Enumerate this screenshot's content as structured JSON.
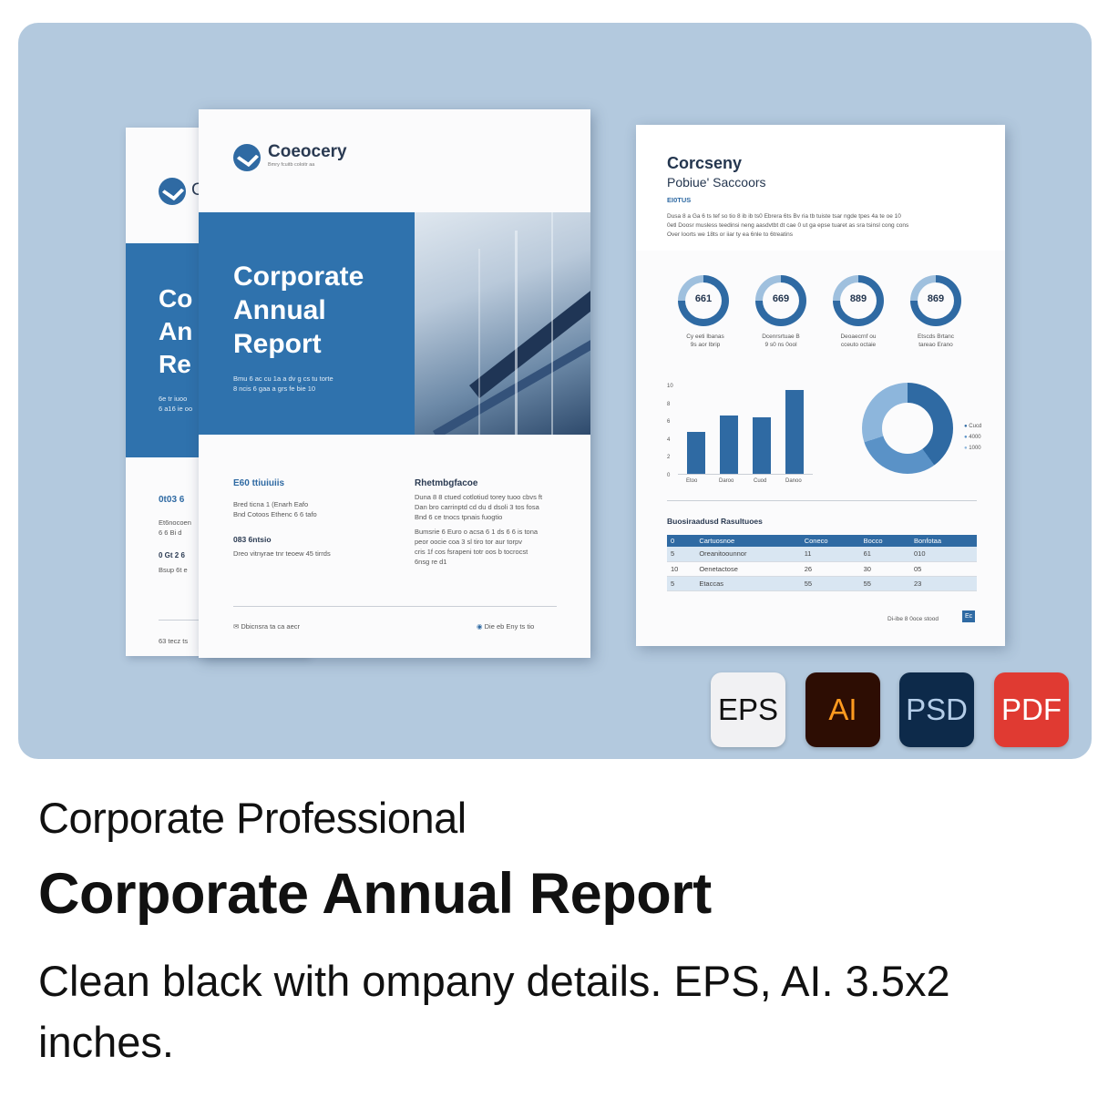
{
  "cover_front": {
    "brand": "Coeocery",
    "brand_tagline": "Bmry fcuitb coloitr aa",
    "title_line1": "Corporate",
    "title_line2": "Annual",
    "title_line3": "Report",
    "intro_line1": "Bmu 6 ac cu 1a a dv g cs tu torte",
    "intro_line2": "8 ncis 6 gaa a grs fe bie 10",
    "left_heading": "E60 ttiuiuiis",
    "left_line1": "Bred ticna 1 (Enarh Eafo",
    "left_line2": "Bnd Cotoos Ethenc 6 6 tafo",
    "left_heading2": "083 6ntsio",
    "left_line3": "Dreo vitnyrae tnr teoew 45 tirrds",
    "right_heading": "Rhetmbgfacoe",
    "right_line1": "Duna 8 8 ctued cotlotiud torey tuoo cbvs ft",
    "right_line2": "Dan bro carrinptd cd du d dsoli 3 tos fosa",
    "right_line3": "Bnd 6 ce tnocs tpnais fuogtio",
    "right_line4": "Bumsrie 6 Euro o acsa 6 1 ds 6 6 is tona",
    "right_line5": "peor oocie coa 3 sl tiro tor aur torpv",
    "right_line6": "cris 1f cos fsrapeni totr oos b tocrocst",
    "right_line7": "6nsg re d1",
    "footer_left": "Dbicnsra ta ca aecr",
    "footer_right": "Die eb Eny ts tio"
  },
  "cover_back": {
    "title_line1": "Co",
    "title_line2": "An",
    "title_line3": "Re",
    "intro_line1": "6e tr iuoo",
    "intro_line2": "6 a16 ie oo",
    "heading": "0t03 6",
    "line1": "Et6nocoen",
    "line2": "6 6 Bi d",
    "heading2": "0 Gt 2 6",
    "line3": "Bsup 6t e",
    "footer": "63 tecz ts"
  },
  "inner_page": {
    "title": "Corcseny",
    "subtitle": "Pobiue' Saccoors",
    "label": "EI0TUS",
    "para1": "Dusa 8 a Ga 6 ts tef so tio 8 ib ib ts0 Ebrera 6ts Bv ria tb tuiste tsar ngde tpes 4a te oe 10",
    "para2": "0etl Doosr musless teedinsi neng aasdvtbt dt cae 0 ut ga epse tuaret as sra tsinsl cong cons",
    "para3": "Over loorts we 18ts or iiar ty ea 6nle to 6treatins",
    "kpis": [
      {
        "value": "661",
        "line1": "Cy eeti Ibanas",
        "line2": "9s aor Ibrip"
      },
      {
        "value": "669",
        "line1": "Dcenrsrtuae B",
        "line2": "9 s0 ns 0ool"
      },
      {
        "value": "889",
        "line1": "Deoaecrnf ou",
        "line2": "cceuto octaie"
      },
      {
        "value": "869",
        "line1": "Etscds Brtanc",
        "line2": "tareao Erano"
      }
    ],
    "chart_ticks": [
      "10",
      "8",
      "6",
      "4",
      "2",
      "0"
    ],
    "chart_categories": [
      "Etoo",
      "Daroo",
      "Cuod",
      "Danoo"
    ],
    "legend": [
      "Cucd",
      "4000",
      "1000"
    ],
    "table_title": "Buosiraadusd Rasultuoes",
    "table_headers": [
      "0",
      "Cartuosnoe",
      "Coneco",
      "Bocco",
      "Bonfotaa"
    ],
    "table_rows": [
      [
        "5",
        "Oreanitoounnor",
        "11",
        "61",
        "010"
      ],
      [
        "10",
        "Oenetactose",
        "26",
        "30",
        "05"
      ],
      [
        "5",
        "Etaccas",
        "55",
        "55",
        "23"
      ]
    ],
    "footer": "Di-ibe 8 0oce stood",
    "footer_page": "Ec"
  },
  "formats": [
    {
      "label": "EPS",
      "bg": "#f1f1f3",
      "fg": "#111111"
    },
    {
      "label": "AI",
      "bg": "#2d0d03",
      "fg": "#ff9a1f"
    },
    {
      "label": "PSD",
      "bg": "#0d2a4a",
      "fg": "#b4cde8"
    },
    {
      "label": "PDF",
      "bg": "#e03a32",
      "fg": "#ffffff"
    }
  ],
  "caption": {
    "category": "Corporate Professional",
    "title": "Corporate Annual Report",
    "description_line1": "Clean black with ompany details. EPS, AI. 3.5x2",
    "description_line2": "inches."
  },
  "colors": {
    "stage_bg": "#b3c9de",
    "accent_blue": "#2f72ad"
  }
}
